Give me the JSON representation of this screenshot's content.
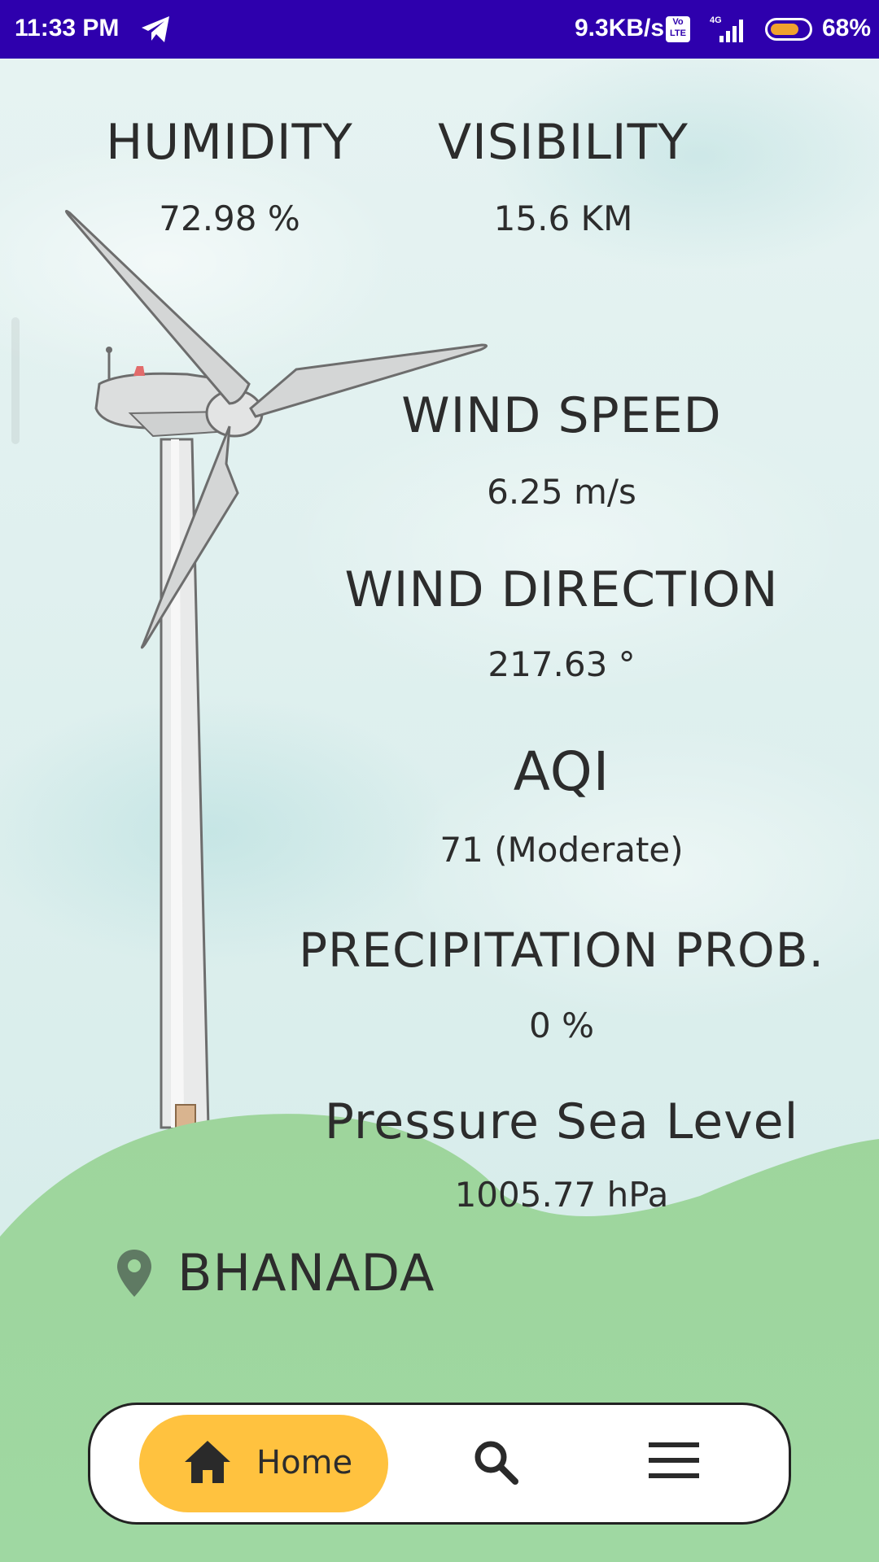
{
  "status_bar": {
    "time": "11:33 PM",
    "network_speed": "9.3KB/s",
    "volte": "Vo LTE",
    "network_type": "4G",
    "battery": "68%"
  },
  "stats": {
    "humidity": {
      "label": "HUMIDITY",
      "value": "72.98 %"
    },
    "visibility": {
      "label": "VISIBILITY",
      "value": "15.6 KM"
    },
    "wind_speed": {
      "label": "WIND SPEED",
      "value": "6.25 m/s"
    },
    "wind_direction": {
      "label": "WIND DIRECTION",
      "value": "217.63 °"
    },
    "aqi": {
      "label": "AQI",
      "value": "71 (Moderate)"
    },
    "precipitation": {
      "label": "PRECIPITATION PROB.",
      "value": "0 %"
    },
    "pressure": {
      "label": "Pressure Sea Level",
      "value": "1005.77 hPa"
    }
  },
  "location": {
    "name": "BHANADA",
    "icon": "location-pin-icon"
  },
  "nav": {
    "home_label": "Home",
    "home_icon": "home-icon",
    "search_icon": "search-icon",
    "menu_icon": "menu-icon"
  },
  "colors": {
    "status_bar": "#2e00ad",
    "accent": "#ffc23f",
    "hill_green": "#8ecf8f",
    "text": "#2c2c2c"
  }
}
